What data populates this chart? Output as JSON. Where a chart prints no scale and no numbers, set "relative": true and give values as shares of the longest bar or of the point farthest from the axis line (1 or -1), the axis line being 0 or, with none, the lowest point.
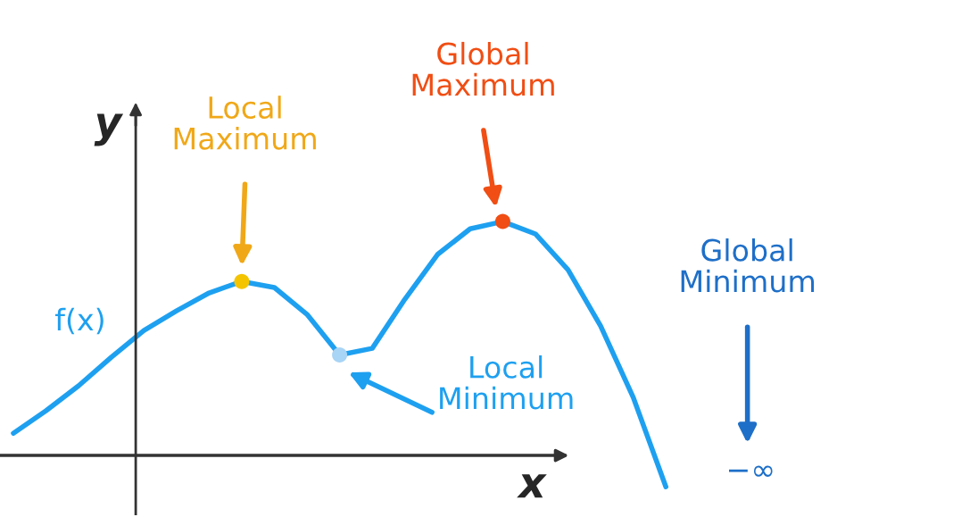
{
  "chart_data": {
    "type": "line",
    "relative": true,
    "xlabel": "x",
    "ylabel": "y",
    "categories": [
      null,
      null,
      null,
      null,
      null,
      null,
      null,
      null,
      null,
      null,
      null,
      null,
      null,
      null,
      null,
      null,
      null,
      null,
      null,
      null,
      null
    ],
    "series": [
      {
        "name": "f(x)",
        "color": "#1ea0f0",
        "values": [
          0.095,
          0.191,
          0.298,
          0.42,
          0.534,
          0.618,
          0.695,
          0.744,
          0.718,
          0.603,
          0.43,
          0.458,
          0.668,
          0.859,
          0.969,
          1,
          0.947,
          0.794,
          0.553,
          0.248,
          -0.134
        ]
      }
    ],
    "annotations": [
      "Local\nMaximum",
      "Global\nMaximum",
      "Local\nMinimum",
      "Global\nMinimum",
      "−∞"
    ],
    "marker": "none",
    "line_style": "solid",
    "legend": false
  }
}
